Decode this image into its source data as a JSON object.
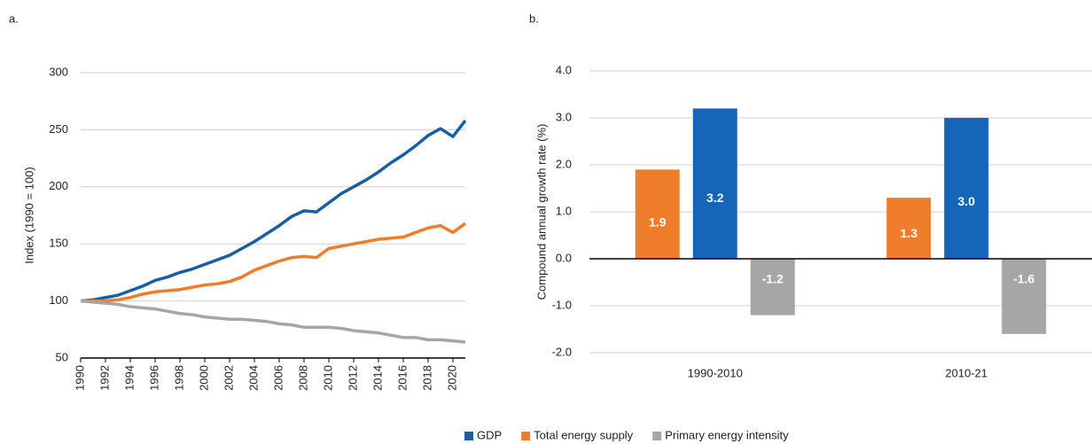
{
  "chart_data": [
    {
      "type": "line",
      "title": "a.",
      "y_label": "Index (1990 = 100)",
      "x": [
        1990,
        1991,
        1992,
        1993,
        1994,
        1995,
        1996,
        1997,
        1998,
        1999,
        2000,
        2001,
        2002,
        2003,
        2004,
        2005,
        2006,
        2007,
        2008,
        2009,
        2010,
        2011,
        2012,
        2013,
        2014,
        2015,
        2016,
        2017,
        2018,
        2019,
        2020,
        2021
      ],
      "xlim": [
        1990,
        2021
      ],
      "xticks": [
        1990,
        1992,
        1994,
        1996,
        1998,
        2000,
        2002,
        2004,
        2006,
        2008,
        2010,
        2012,
        2014,
        2016,
        2018,
        2020
      ],
      "ylim": [
        50,
        300
      ],
      "yticks": [
        50,
        100,
        150,
        200,
        250,
        300
      ],
      "grid": true,
      "series": [
        {
          "name": "GDP",
          "color": "#1a5fa3",
          "values": [
            100,
            101,
            103,
            105,
            109,
            113,
            118,
            121,
            125,
            128,
            132,
            136,
            140,
            146,
            152,
            159,
            166,
            174,
            179,
            178,
            186,
            194,
            200,
            206,
            213,
            221,
            228,
            236,
            245,
            251,
            244,
            258
          ]
        },
        {
          "name": "Total energy supply",
          "color": "#ef7d2c",
          "values": [
            100,
            100,
            100,
            101,
            103,
            106,
            108,
            109,
            110,
            112,
            114,
            115,
            117,
            121,
            127,
            131,
            135,
            138,
            139,
            138,
            146,
            148,
            150,
            152,
            154,
            155,
            156,
            160,
            164,
            166,
            160,
            168
          ]
        },
        {
          "name": "Primary energy intensity",
          "color": "#a6a6a6",
          "values": [
            100,
            99,
            98,
            97,
            95,
            94,
            93,
            91,
            89,
            88,
            86,
            85,
            84,
            84,
            83,
            82,
            80,
            79,
            77,
            77,
            77,
            76,
            74,
            73,
            72,
            70,
            68,
            68,
            66,
            66,
            65,
            64
          ]
        }
      ]
    },
    {
      "type": "bar",
      "title": "b.",
      "y_label": "Compound annual growth rate (%)",
      "categories": [
        "1990-2010",
        "2010-21"
      ],
      "ylim": [
        -2,
        4
      ],
      "yticks": [
        {
          "value": -2,
          "label": "-2.0"
        },
        {
          "value": -1,
          "label": "-1.0"
        },
        {
          "value": 0,
          "label": "0.0"
        },
        {
          "value": 1,
          "label": "1.0"
        },
        {
          "value": 2,
          "label": "2.0"
        },
        {
          "value": 3,
          "label": "3.0"
        },
        {
          "value": 4,
          "label": "4.0"
        }
      ],
      "grid": true,
      "series": [
        {
          "name": "Total energy supply",
          "color": "#ef7d2c",
          "values": [
            1.9,
            1.3
          ],
          "value_labels": [
            "1.9",
            "1.3"
          ]
        },
        {
          "name": "GDP",
          "color": "#1565b8",
          "values": [
            3.2,
            3.0
          ],
          "value_labels": [
            "3.2",
            "3.0"
          ]
        },
        {
          "name": "Primary energy intensity",
          "color": "#a6a6a6",
          "values": [
            -1.2,
            -1.6
          ],
          "value_labels": [
            "-1.2",
            "-1.6"
          ]
        }
      ]
    }
  ]
}
